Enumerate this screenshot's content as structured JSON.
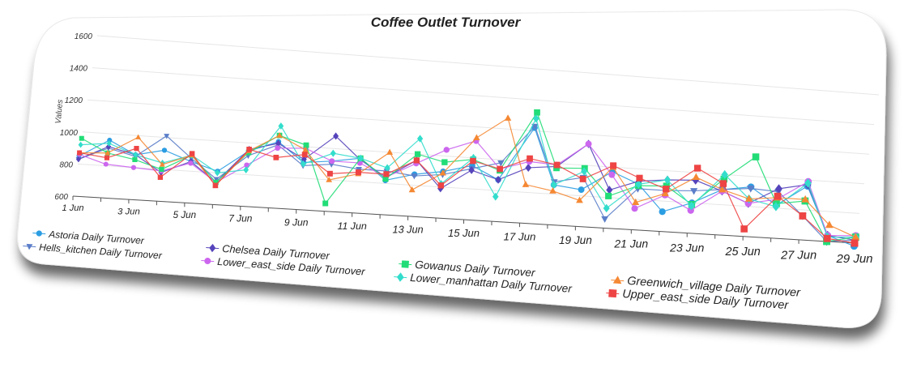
{
  "chart_data": {
    "type": "line",
    "title": "Coffee Outlet Turnover",
    "xlabel": "",
    "ylabel": "Values",
    "ylim": [
      600,
      1600
    ],
    "yticks": [
      "600",
      "800",
      "1000",
      "1200",
      "1400",
      "1600"
    ],
    "x": [
      "1 Jun",
      "2 Jun",
      "3 Jun",
      "4 Jun",
      "5 Jun",
      "6 Jun",
      "7 Jun",
      "8 Jun",
      "9 Jun",
      "10 Jun",
      "11 Jun",
      "12 Jun",
      "13 Jun",
      "14 Jun",
      "15 Jun",
      "16 Jun",
      "17 Jun",
      "18 Jun",
      "19 Jun",
      "20 Jun",
      "21 Jun",
      "22 Jun",
      "23 Jun",
      "24 Jun",
      "25 Jun",
      "26 Jun",
      "27 Jun",
      "28 Jun",
      "29 Jun"
    ],
    "xticks": [
      "1 Jun",
      "3 Jun",
      "5 Jun",
      "7 Jun",
      "9 Jun",
      "11 Jun",
      "13 Jun",
      "15 Jun",
      "17 Jun",
      "19 Jun",
      "21 Jun",
      "23 Jun",
      "25 Jun",
      "27 Jun",
      "29 Jun"
    ],
    "grid": true,
    "legend_position": "bottom",
    "series": [
      {
        "name": "Astoria Daily Turnover",
        "marker": "circle",
        "color": "#2b9de2",
        "values": [
          850,
          960,
          880,
          920,
          860,
          810,
          950,
          1020,
          900,
          920,
          950,
          820,
          870,
          900,
          950,
          870,
          1220,
          860,
          840,
          970,
          900,
          730,
          800,
          900,
          930,
          820,
          960,
          640,
          580
        ]
      },
      {
        "name": "Hells_kitchen Daily Turnover",
        "marker": "triangle-down",
        "color": "#5b7ec9",
        "values": [
          830,
          910,
          870,
          1010,
          880,
          760,
          920,
          1000,
          880,
          900,
          880,
          880,
          860,
          880,
          930,
          980,
          1230,
          880,
          920,
          660,
          870,
          870,
          880,
          900,
          920,
          910,
          760,
          600,
          620
        ]
      },
      {
        "name": "Chelsea Daily Turnover",
        "marker": "diamond",
        "color": "#5544bb",
        "values": [
          830,
          920,
          880,
          780,
          860,
          740,
          960,
          1010,
          920,
          1080,
          940,
          840,
          960,
          790,
          920,
          870,
          960,
          980,
          1140,
          850,
          920,
          940,
          950,
          890,
          820,
          930,
          970,
          640,
          620
        ]
      },
      {
        "name": "Lower_east_side Daily Turnover",
        "marker": "circle",
        "color": "#cc66ee",
        "values": [
          860,
          810,
          800,
          790,
          850,
          740,
          860,
          980,
          990,
          920,
          920,
          840,
          940,
          1040,
          1110,
          940,
          1000,
          990,
          1140,
          950,
          740,
          840,
          750,
          890,
          820,
          860,
          990,
          640,
          650
        ]
      },
      {
        "name": "Gowanus Daily Turnover",
        "marker": "square",
        "color": "#22dd77",
        "values": [
          960,
          880,
          850,
          800,
          900,
          740,
          940,
          1060,
          1010,
          650,
          950,
          830,
          1000,
          960,
          990,
          930,
          1320,
          970,
          980,
          810,
          890,
          900,
          790,
          970,
          1130,
          830,
          860,
          600,
          640
        ]
      },
      {
        "name": "Lower_manhattan Daily Turnover",
        "marker": "diamond",
        "color": "#33ddcc",
        "values": [
          920,
          940,
          880,
          840,
          900,
          800,
          830,
          1120,
          890,
          970,
          950,
          900,
          1100,
          820,
          1000,
          760,
          1280,
          860,
          960,
          730,
          900,
          940,
          780,
          1000,
          850,
          810,
          980,
          630,
          640
        ]
      },
      {
        "name": "Greenwich_village Daily Turnover",
        "marker": "triangle",
        "color": "#f58833",
        "values": [
          870,
          880,
          990,
          830,
          900,
          720,
          950,
          1060,
          980,
          800,
          850,
          1000,
          770,
          890,
          1130,
          1270,
          850,
          820,
          770,
          1000,
          780,
          850,
          970,
          900,
          850,
          870,
          870,
          710,
          640
        ]
      },
      {
        "name": "Upper_east_side Daily Turnover",
        "marker": "square",
        "color": "#ee4444",
        "values": [
          870,
          850,
          920,
          750,
          910,
          720,
          960,
          920,
          950,
          840,
          860,
          860,
          960,
          810,
          980,
          940,
          1020,
          990,
          910,
          1010,
          940,
          880,
          1030,
          940,
          650,
          880,
          760,
          620,
          600
        ]
      }
    ]
  }
}
